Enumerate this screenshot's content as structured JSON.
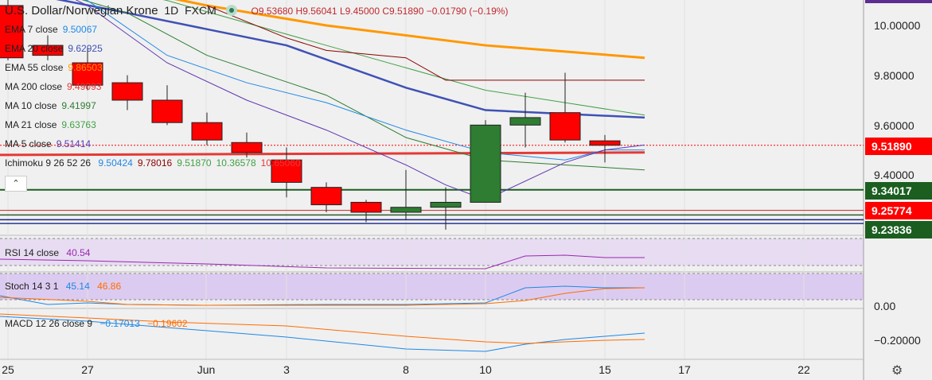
{
  "header": {
    "symbol": "U.S. Dollar/Norwegian Krone",
    "interval": "1D",
    "source": "FXCM",
    "ohlc": "O9.53680  H9.56041  L9.45000  C9.51890  −0.01790 (−0.19%)"
  },
  "legend": [
    {
      "label": "EMA 7 close",
      "value": "9.50067",
      "color": "#1e88e5"
    },
    {
      "label": "EMA 20 close",
      "value": "9.62925",
      "color": "#3f51b5"
    },
    {
      "label": "EMA 55 close",
      "value": "9.86503",
      "color": "#ff9800"
    },
    {
      "label": "MA 200 close",
      "value": "9.49093",
      "color": "#e53935"
    },
    {
      "label": "MA 10 close",
      "value": "9.41997",
      "color": "#2e7d32"
    },
    {
      "label": "MA 21 close",
      "value": "9.63763",
      "color": "#43a047"
    },
    {
      "label": "MA 5 close",
      "value": "9.51414",
      "color": "#5e35b1"
    }
  ],
  "ichimoku": {
    "label": "Ichimoku 9 26 52 26",
    "values": [
      {
        "v": "9.50424",
        "color": "#1e88e5"
      },
      {
        "v": "9.78016",
        "color": "#8b0000"
      },
      {
        "v": "9.51870",
        "color": "#43a047"
      },
      {
        "v": "10.36578",
        "color": "#43a047"
      },
      {
        "v": "10.65060",
        "color": "#e53935"
      }
    ]
  },
  "rsi": {
    "label": "RSI 14 close",
    "value": "40.54",
    "color": "#9c27b0"
  },
  "stoch": {
    "label": "Stoch 14 3 1",
    "k": "45.14",
    "d": "46.86",
    "k_color": "#1e88e5",
    "d_color": "#ff6d00"
  },
  "macd": {
    "label": "MACD 12 26 close 9",
    "macd": "−0.17013",
    "signal": "−0.19602",
    "macd_color": "#1e88e5",
    "signal_color": "#ff6d00"
  },
  "price_axis": {
    "ticks": [
      "10.00000",
      "9.80000",
      "9.60000",
      "9.40000"
    ],
    "badges": [
      {
        "text": "9.51890",
        "color": "#ff0000"
      },
      {
        "text": "9.34017",
        "color": "#1b5e20"
      },
      {
        "text": "9.25774",
        "color": "#ff0000"
      },
      {
        "text": "9.23836",
        "color": "#1b5e20"
      }
    ],
    "macd_ticks": [
      "0.00",
      "−0.20000"
    ]
  },
  "x_axis": {
    "labels": [
      "25",
      "27",
      "Jun",
      "3",
      "8",
      "10",
      "15",
      "17",
      "22"
    ]
  },
  "chart_data": {
    "type": "candlestick",
    "title": "U.S. Dollar/Norwegian Krone 1D FXCM",
    "ylim": [
      9.2,
      10.1
    ],
    "candles": [
      {
        "o": 10.08,
        "h": 10.12,
        "l": 9.86,
        "c": 9.87,
        "color": "#ff0000"
      },
      {
        "o": 9.92,
        "h": 9.96,
        "l": 9.86,
        "c": 9.88,
        "color": "#ff0000"
      },
      {
        "o": 9.85,
        "h": 9.91,
        "l": 9.74,
        "c": 9.76,
        "color": "#ff0000"
      },
      {
        "o": 9.77,
        "h": 9.8,
        "l": 9.66,
        "c": 9.7,
        "color": "#ff0000"
      },
      {
        "o": 9.7,
        "h": 9.76,
        "l": 9.6,
        "c": 9.61,
        "color": "#ff0000"
      },
      {
        "o": 9.61,
        "h": 9.65,
        "l": 9.52,
        "c": 9.54,
        "color": "#ff0000"
      },
      {
        "o": 9.53,
        "h": 9.57,
        "l": 9.47,
        "c": 9.49,
        "color": "#ff0000"
      },
      {
        "o": 9.46,
        "h": 9.51,
        "l": 9.31,
        "c": 9.37,
        "color": "#ff0000"
      },
      {
        "o": 9.35,
        "h": 9.37,
        "l": 9.25,
        "c": 9.28,
        "color": "#ff0000"
      },
      {
        "o": 9.29,
        "h": 9.3,
        "l": 9.21,
        "c": 9.25,
        "color": "#ff0000"
      },
      {
        "o": 9.25,
        "h": 9.42,
        "l": 9.22,
        "c": 9.27,
        "color": "#2e7d32"
      },
      {
        "o": 9.27,
        "h": 9.35,
        "l": 9.18,
        "c": 9.29,
        "color": "#2e7d32"
      },
      {
        "o": 9.29,
        "h": 9.62,
        "l": 9.29,
        "c": 9.6,
        "color": "#2e7d32"
      },
      {
        "o": 9.6,
        "h": 9.73,
        "l": 9.51,
        "c": 9.63,
        "color": "#2e7d32"
      },
      {
        "o": 9.65,
        "h": 9.81,
        "l": 9.53,
        "c": 9.54,
        "color": "#ff0000"
      },
      {
        "o": 9.5368,
        "h": 9.56041,
        "l": 9.45,
        "c": 9.5189,
        "color": "#ff0000"
      }
    ]
  }
}
